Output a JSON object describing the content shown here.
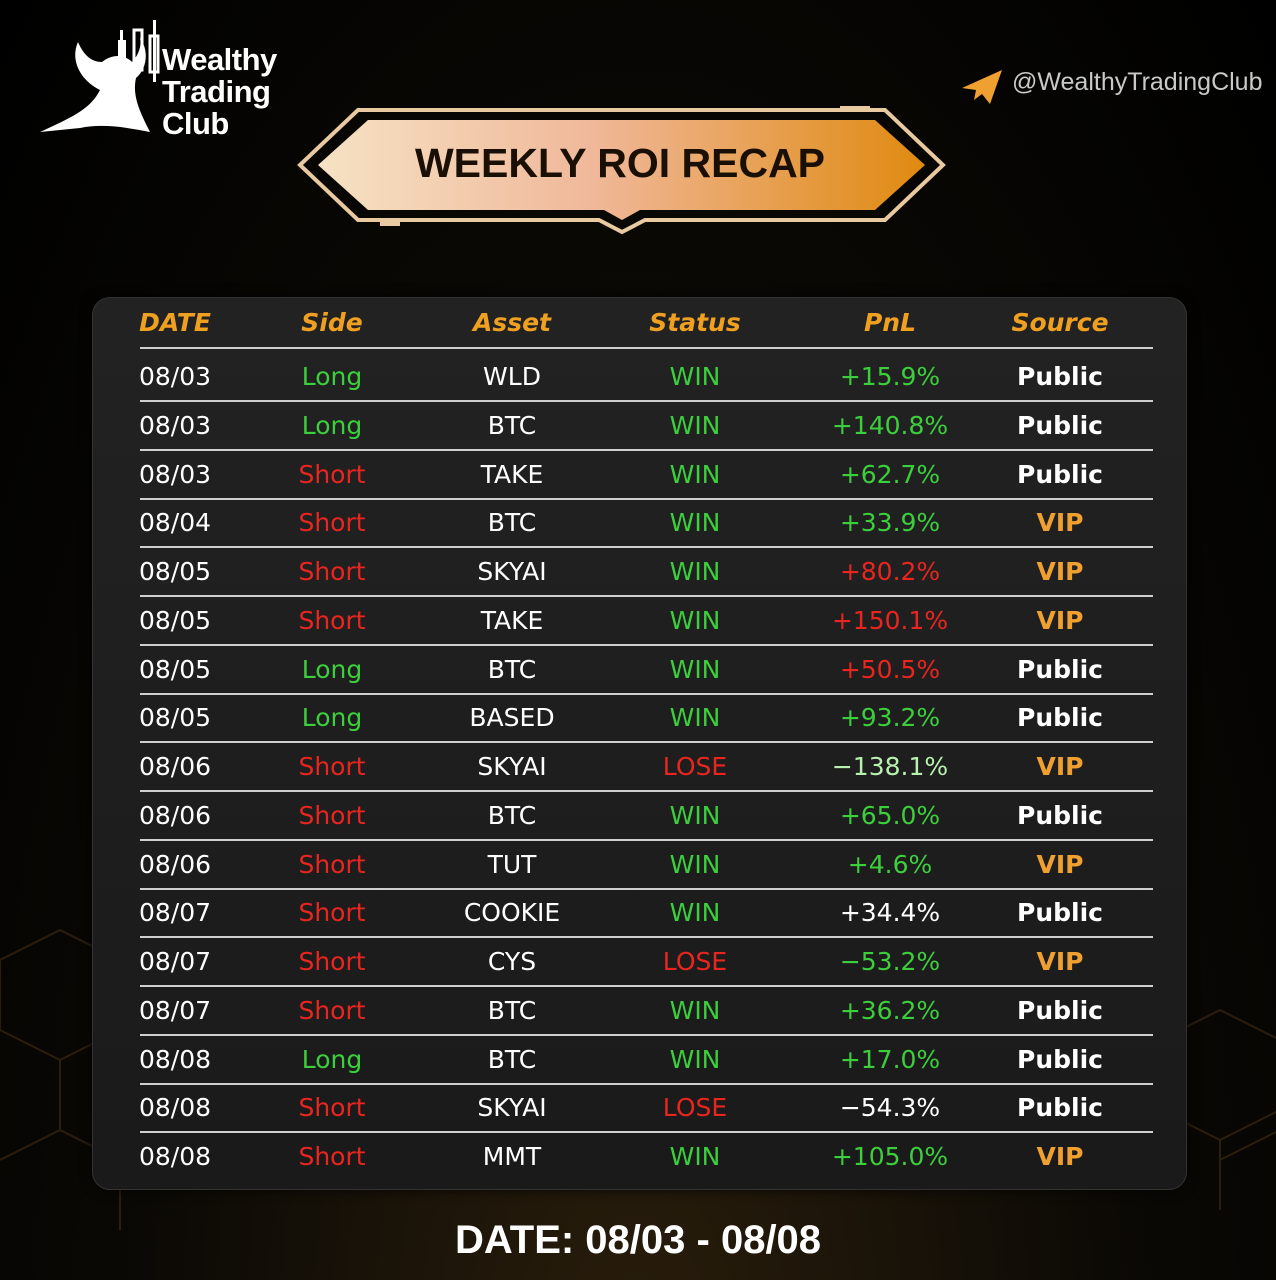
{
  "brand": {
    "lines": [
      "Wealthy",
      "Trading",
      "Club"
    ],
    "handle": "@WealthyTradingClub"
  },
  "title": "WEEKLY ROI RECAP",
  "table": {
    "header": [
      "DATE",
      "Side",
      "Asset",
      "Status",
      "PnL",
      "Source"
    ],
    "header_color": "#f0a020",
    "rows": [
      [
        "08/03",
        "Long",
        "WLD",
        "WIN",
        "+15.9%",
        "Public"
      ],
      [
        "08/03",
        "Long",
        "BTC",
        "WIN",
        "+140.8%",
        "Public"
      ],
      [
        "08/03",
        "Short",
        "TAKE",
        "WIN",
        "+62.7%",
        "Public"
      ],
      [
        "08/04",
        "Short",
        "BTC",
        "WIN",
        "+33.9%",
        "VIP"
      ],
      [
        "08/05",
        "Short",
        "SKYAI",
        "WIN",
        "+80.2%",
        "VIP"
      ],
      [
        "08/05",
        "Short",
        "TAKE",
        "WIN",
        "+150.1%",
        "VIP"
      ],
      [
        "08/05",
        "Long",
        "BTC",
        "WIN",
        "+50.5%",
        "Public"
      ],
      [
        "08/05",
        "Long",
        "BASED",
        "WIN",
        "+93.2%",
        "Public"
      ],
      [
        "08/06",
        "Short",
        "SKYAI",
        "LOSE",
        "−138.1%",
        "VIP"
      ],
      [
        "08/06",
        "Short",
        "BTC",
        "WIN",
        "+65.0%",
        "Public"
      ],
      [
        "08/06",
        "Short",
        "TUT",
        "WIN",
        "+4.6%",
        "VIP"
      ],
      [
        "08/07",
        "Short",
        "COOKIE",
        "WIN",
        "+34.4%",
        "Public"
      ],
      [
        "08/07",
        "Short",
        "CYS",
        "LOSE",
        "−53.2%",
        "VIP"
      ],
      [
        "08/07",
        "Short",
        "BTC",
        "WIN",
        "+36.2%",
        "Public"
      ],
      [
        "08/08",
        "Long",
        "BTC",
        "WIN",
        "+17.0%",
        "Public"
      ],
      [
        "08/08",
        "Short",
        "SKYAI",
        "LOSE",
        "−54.3%",
        "Public"
      ],
      [
        "08/08",
        "Short",
        "MMT",
        "WIN",
        "+105.0%",
        "VIP"
      ]
    ],
    "cell_colors": [
      [
        "#ffffff",
        "#3ccf3c",
        "#ffffff",
        "#3ccf3c",
        "#3ccf3c",
        "#ffffff"
      ],
      [
        "#ffffff",
        "#3ccf3c",
        "#ffffff",
        "#3ccf3c",
        "#3ccf3c",
        "#ffffff"
      ],
      [
        "#ffffff",
        "#e8251f",
        "#ffffff",
        "#3ccf3c",
        "#3ccf3c",
        "#ffffff"
      ],
      [
        "#ffffff",
        "#e8251f",
        "#ffffff",
        "#3ccf3c",
        "#3ccf3c",
        "#f0a030"
      ],
      [
        "#ffffff",
        "#e8251f",
        "#ffffff",
        "#3ccf3c",
        "#e8251f",
        "#f0a030"
      ],
      [
        "#ffffff",
        "#e8251f",
        "#ffffff",
        "#3ccf3c",
        "#e8251f",
        "#f0a030"
      ],
      [
        "#ffffff",
        "#3ccf3c",
        "#ffffff",
        "#3ccf3c",
        "#e8251f",
        "#ffffff"
      ],
      [
        "#ffffff",
        "#3ccf3c",
        "#ffffff",
        "#3ccf3c",
        "#3ccf3c",
        "#ffffff"
      ],
      [
        "#ffffff",
        "#e8251f",
        "#ffffff",
        "#e8251f",
        "#b8f0b0",
        "#f0a030"
      ],
      [
        "#ffffff",
        "#e8251f",
        "#ffffff",
        "#3ccf3c",
        "#3ccf3c",
        "#ffffff"
      ],
      [
        "#ffffff",
        "#e8251f",
        "#ffffff",
        "#3ccf3c",
        "#3ccf3c",
        "#f0a030"
      ],
      [
        "#ffffff",
        "#e8251f",
        "#ffffff",
        "#3ccf3c",
        "#ffffff",
        "#ffffff"
      ],
      [
        "#ffffff",
        "#e8251f",
        "#ffffff",
        "#e8251f",
        "#3ccf3c",
        "#f0a030"
      ],
      [
        "#ffffff",
        "#e8251f",
        "#ffffff",
        "#3ccf3c",
        "#3ccf3c",
        "#ffffff"
      ],
      [
        "#ffffff",
        "#3ccf3c",
        "#ffffff",
        "#3ccf3c",
        "#3ccf3c",
        "#ffffff"
      ],
      [
        "#ffffff",
        "#e8251f",
        "#ffffff",
        "#e8251f",
        "#ffffff",
        "#ffffff"
      ],
      [
        "#ffffff",
        "#e8251f",
        "#ffffff",
        "#3ccf3c",
        "#3ccf3c",
        "#f0a030"
      ]
    ]
  },
  "footer": "DATE: 08/03 - 08/08"
}
